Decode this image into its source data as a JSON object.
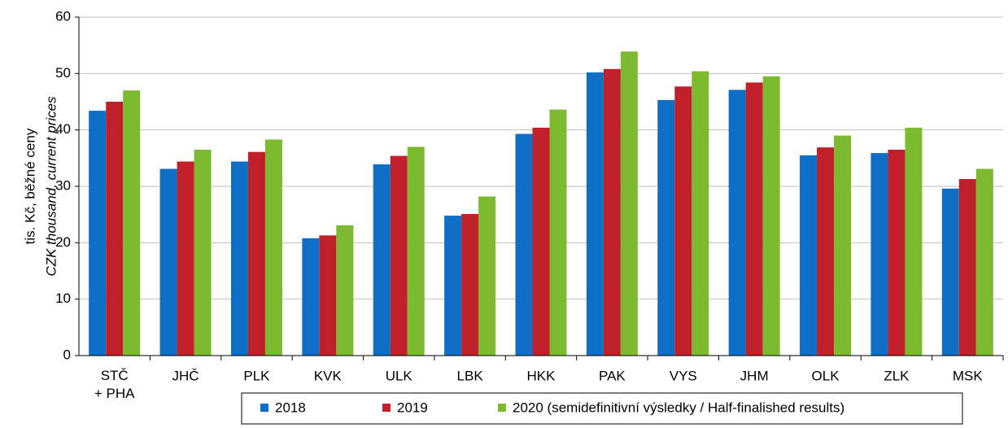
{
  "chart_data": {
    "type": "bar",
    "y_label": [
      "tis. Kč, běžné ceny",
      "CZK thousand, current prices"
    ],
    "categories": [
      "STČ\n+ PHA",
      "JHČ",
      "PLK",
      "KVK",
      "ULK",
      "LBK",
      "HKK",
      "PAK",
      "VYS",
      "JHM",
      "OLK",
      "ZLK",
      "MSK"
    ],
    "series": [
      {
        "name": "2018",
        "color": "#0f6fc6",
        "values": [
          43.4,
          33.1,
          34.4,
          20.8,
          33.9,
          24.8,
          39.3,
          50.2,
          45.3,
          47.1,
          35.5,
          35.9,
          29.6
        ]
      },
      {
        "name": "2019",
        "color": "#c0202a",
        "values": [
          45,
          34.4,
          36.1,
          21.3,
          35.4,
          25.1,
          40.4,
          50.8,
          47.7,
          48.4,
          36.9,
          36.5,
          31.3
        ]
      },
      {
        "name": "2020 (semidefinitivní výsledky / Half-finalished results)",
        "color": "#7cba2f",
        "values": [
          47,
          36.5,
          38.3,
          23.1,
          37,
          28.2,
          43.6,
          53.9,
          50.4,
          49.5,
          39,
          40.4,
          33.1
        ]
      }
    ],
    "ylim": [
      0,
      60
    ],
    "yticks": [
      0,
      10,
      20,
      30,
      40,
      50,
      60
    ],
    "grid": true,
    "legend": "bottom"
  }
}
